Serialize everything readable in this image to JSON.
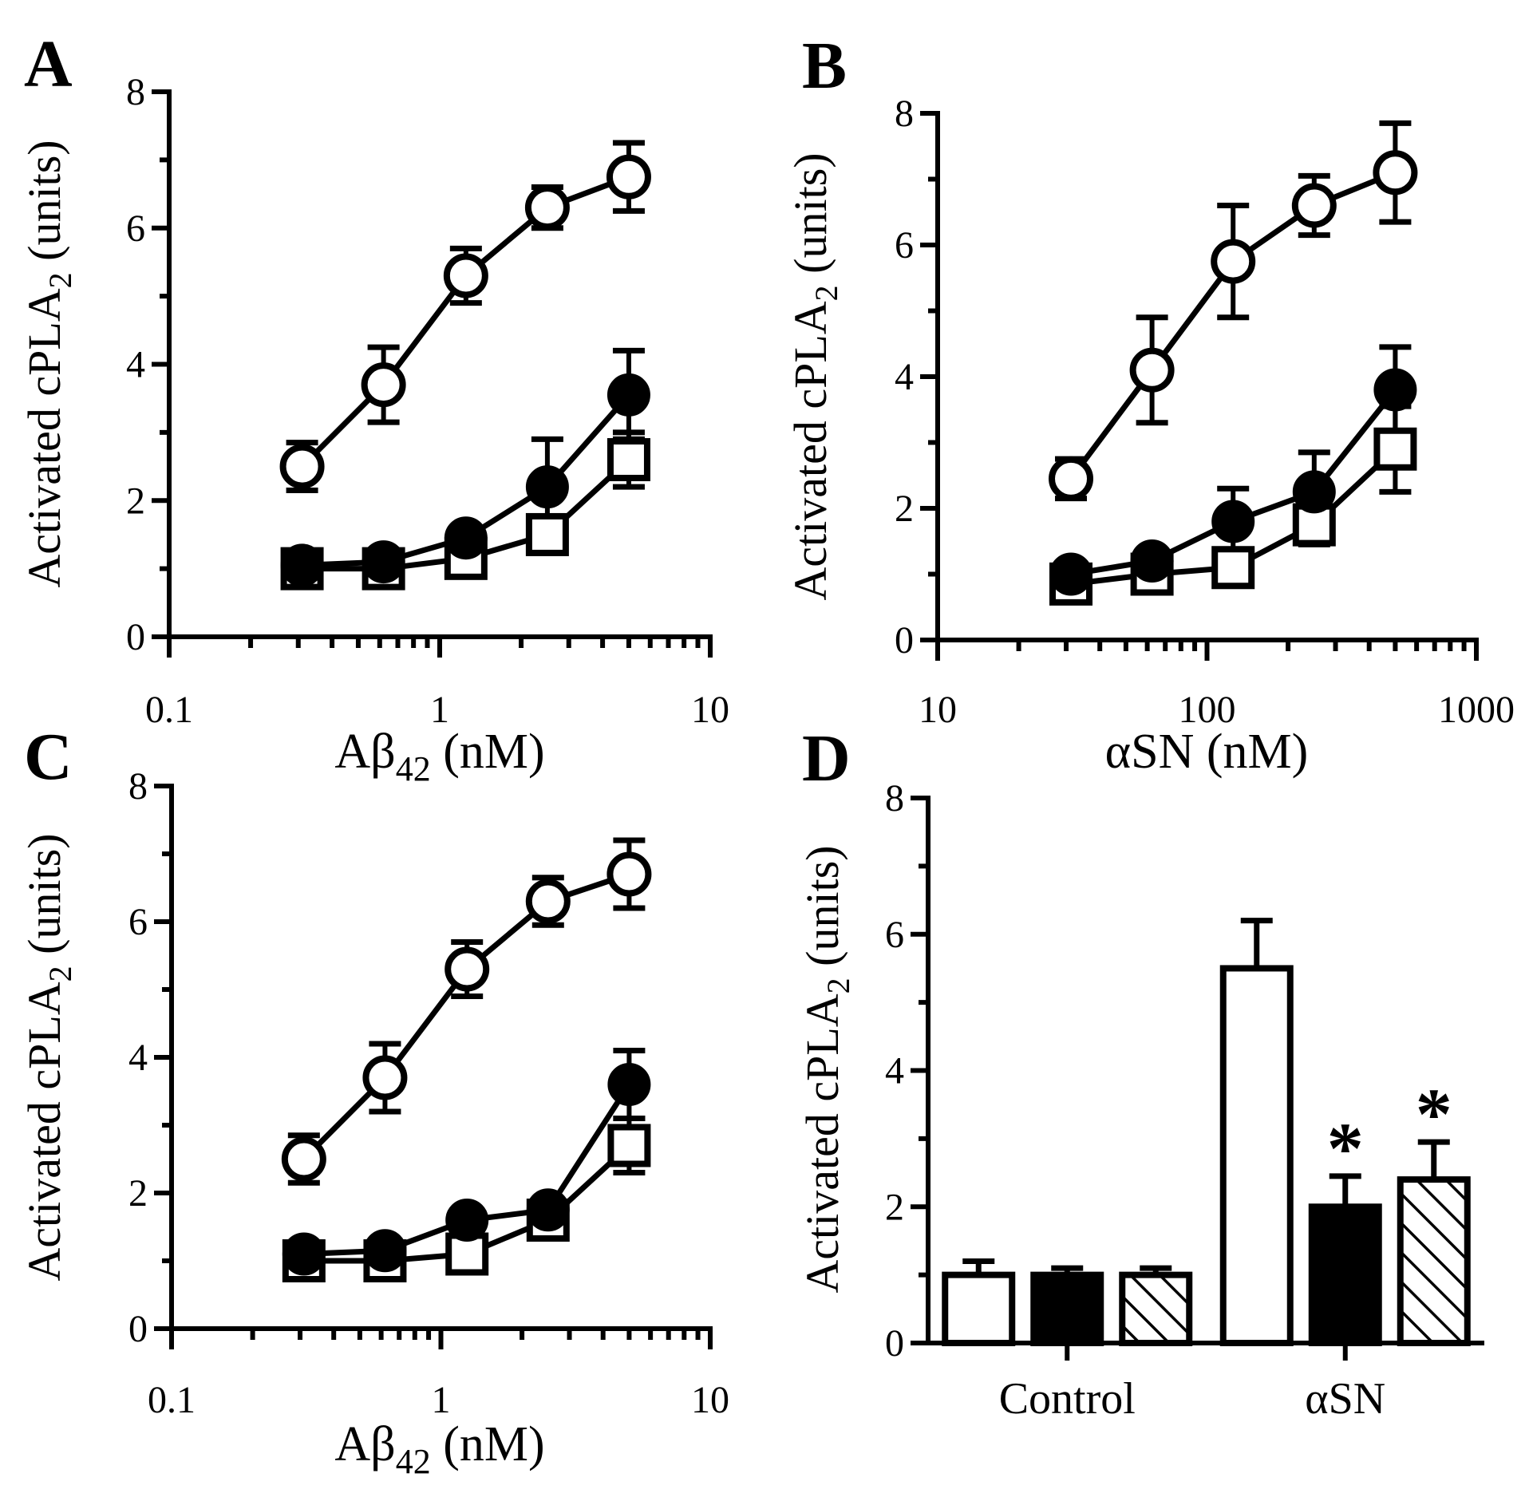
{
  "colors": {
    "ink": "#000000",
    "background": "#ffffff"
  },
  "chart_data": [
    {
      "panel": "A",
      "type": "scatter",
      "xscale": "log",
      "xlim": [
        0.1,
        10
      ],
      "ylim": [
        0,
        8
      ],
      "xticks": [
        "0.1",
        "1",
        "10"
      ],
      "yticks": [
        "0",
        "2",
        "4",
        "6",
        "8"
      ],
      "xlabel_main": "Aβ",
      "xlabel_sub": "42",
      "xlabel_tail": " (nM)",
      "ylabel_main": "Activated cPLA",
      "ylabel_sub": "2",
      "ylabel_tail": " (units)",
      "x": [
        0.31,
        0.62,
        1.25,
        2.5,
        5
      ],
      "series": [
        {
          "marker": "open-circle",
          "values": [
            2.5,
            3.7,
            5.3,
            6.3,
            6.75
          ],
          "errors": [
            0.35,
            0.55,
            0.4,
            0.3,
            0.5
          ]
        },
        {
          "marker": "filled-circle",
          "values": [
            1.05,
            1.1,
            1.45,
            2.2,
            3.55
          ],
          "errors": [
            0.15,
            0.15,
            0.1,
            0.7,
            0.65
          ]
        },
        {
          "marker": "open-square",
          "values": [
            1.0,
            1.0,
            1.15,
            1.5,
            2.6
          ],
          "errors": [
            0.15,
            0.15,
            0.1,
            0.2,
            0.4
          ]
        }
      ]
    },
    {
      "panel": "B",
      "type": "scatter",
      "xscale": "log",
      "xlim": [
        10,
        1000
      ],
      "ylim": [
        0,
        8
      ],
      "xticks": [
        "10",
        "100",
        "1000"
      ],
      "yticks": [
        "0",
        "2",
        "4",
        "6",
        "8"
      ],
      "xlabel_main": "αSN (nM)",
      "xlabel_sub": "",
      "xlabel_tail": "",
      "ylabel_main": "Activated cPLA",
      "ylabel_sub": "2",
      "ylabel_tail": " (units)",
      "x": [
        31.25,
        62.5,
        125,
        250,
        500
      ],
      "series": [
        {
          "marker": "open-circle",
          "values": [
            2.45,
            4.1,
            5.75,
            6.6,
            7.1
          ],
          "errors": [
            0.3,
            0.8,
            0.85,
            0.45,
            0.75
          ]
        },
        {
          "marker": "filled-circle",
          "values": [
            1.0,
            1.2,
            1.8,
            2.25,
            3.8
          ],
          "errors": [
            0.15,
            0.15,
            0.5,
            0.6,
            0.65
          ]
        },
        {
          "marker": "open-square",
          "values": [
            0.85,
            1.0,
            1.1,
            1.75,
            2.9
          ],
          "errors": [
            0.15,
            0.15,
            0.15,
            0.3,
            0.65
          ]
        }
      ]
    },
    {
      "panel": "C",
      "type": "scatter",
      "xscale": "log",
      "xlim": [
        0.1,
        10
      ],
      "ylim": [
        0,
        8
      ],
      "xticks": [
        "0.1",
        "1",
        "10"
      ],
      "yticks": [
        "0",
        "2",
        "4",
        "6",
        "8"
      ],
      "xlabel_main": "Aβ",
      "xlabel_sub": "42",
      "xlabel_tail": " (nM)",
      "ylabel_main": "Activated cPLA",
      "ylabel_sub": "2",
      "ylabel_tail": " (units)",
      "x": [
        0.31,
        0.62,
        1.25,
        2.5,
        5
      ],
      "series": [
        {
          "marker": "open-circle",
          "values": [
            2.5,
            3.7,
            5.3,
            6.3,
            6.7
          ],
          "errors": [
            0.35,
            0.5,
            0.4,
            0.35,
            0.5
          ]
        },
        {
          "marker": "filled-circle",
          "values": [
            1.1,
            1.15,
            1.6,
            1.75,
            3.6
          ],
          "errors": [
            0.15,
            0.15,
            0.1,
            0.15,
            0.5
          ]
        },
        {
          "marker": "open-square",
          "values": [
            1.0,
            1.0,
            1.1,
            1.6,
            2.7
          ],
          "errors": [
            0.15,
            0.15,
            0.1,
            0.2,
            0.4
          ]
        }
      ]
    },
    {
      "panel": "D",
      "type": "bar",
      "ylim": [
        0,
        8
      ],
      "yticks": [
        "0",
        "2",
        "4",
        "6",
        "8"
      ],
      "ylabel_main": "Activated cPLA",
      "ylabel_sub": "2",
      "ylabel_tail": " (units)",
      "categories": [
        "Control",
        "αSN"
      ],
      "series": [
        {
          "fill": "open",
          "values": [
            1.0,
            5.5
          ],
          "errors": [
            0.2,
            0.7
          ]
        },
        {
          "fill": "solid",
          "values": [
            1.0,
            2.0
          ],
          "errors": [
            0.1,
            0.45
          ]
        },
        {
          "fill": "hatched",
          "values": [
            1.0,
            2.4
          ],
          "errors": [
            0.1,
            0.55
          ]
        }
      ],
      "annotations": [
        "",
        "",
        "",
        "",
        "*",
        "*"
      ]
    }
  ]
}
